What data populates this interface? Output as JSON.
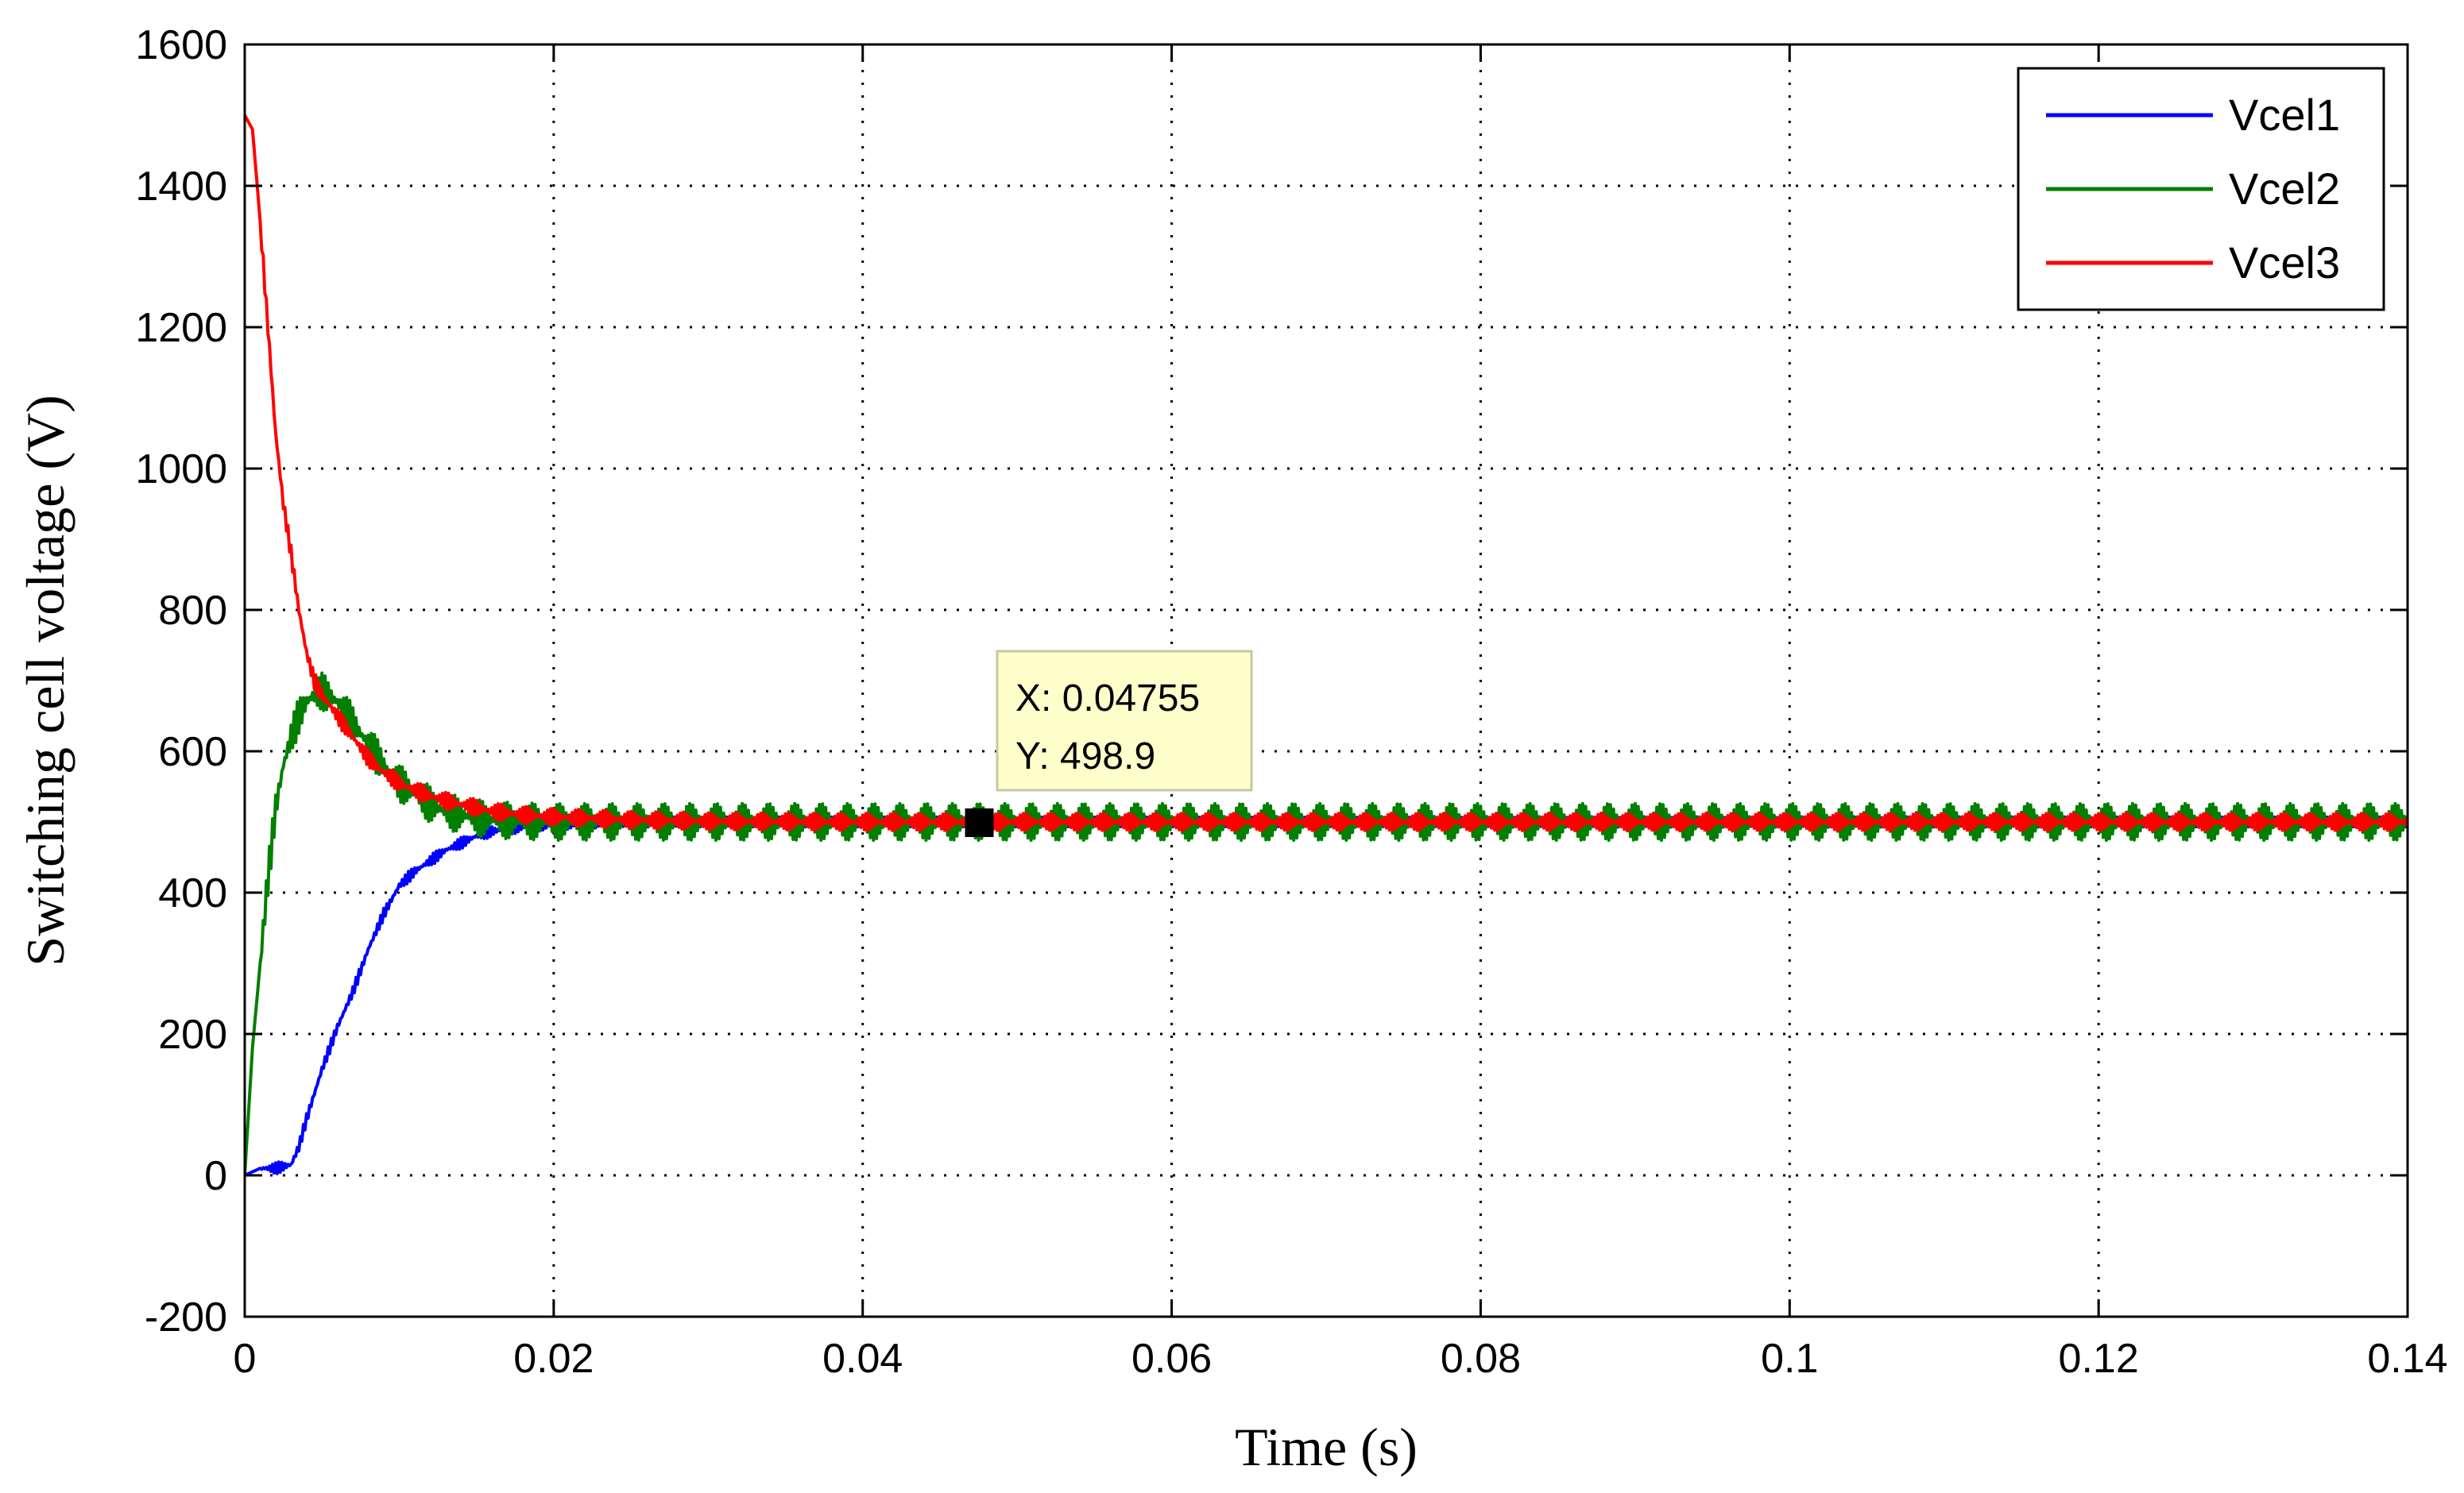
{
  "chart_data": {
    "type": "line",
    "xlabel": "Time (s)",
    "ylabel": "Switching cell voltage (V)",
    "xlim": [
      0,
      0.14
    ],
    "ylim": [
      -200,
      1600
    ],
    "x_ticks": [
      0,
      0.02,
      0.04,
      0.06,
      0.08,
      0.1,
      0.12,
      0.14
    ],
    "x_tick_labels": [
      "0",
      "0.02",
      "0.04",
      "0.06",
      "0.08",
      "0.1",
      "0.12",
      "0.14"
    ],
    "y_ticks": [
      -200,
      0,
      200,
      400,
      600,
      800,
      1000,
      1200,
      1400,
      1600
    ],
    "y_tick_labels": [
      "-200",
      "0",
      "200",
      "400",
      "600",
      "800",
      "1000",
      "1200",
      "1400",
      "1600"
    ],
    "grid": true,
    "legend_position": "top-right",
    "series": [
      {
        "name": "Vcel1",
        "color": "#0000ff",
        "ripple": 8,
        "x": [
          0,
          0.0005,
          0.001,
          0.002,
          0.003,
          0.0035,
          0.004,
          0.005,
          0.006,
          0.007,
          0.008,
          0.009,
          0.01,
          0.011,
          0.012,
          0.013,
          0.014,
          0.015,
          0.016,
          0.018,
          0.02,
          0.025,
          0.03,
          0.04,
          0.05,
          0.06,
          0.07,
          0.08,
          0.09,
          0.1,
          0.11,
          0.12,
          0.13,
          0.14
        ],
        "y": [
          0,
          5,
          10,
          10,
          15,
          40,
          80,
          150,
          210,
          260,
          320,
          370,
          410,
          430,
          445,
          460,
          470,
          480,
          487,
          493,
          497,
          500,
          500,
          500,
          500,
          500,
          500,
          500,
          500,
          500,
          500,
          500,
          500,
          500
        ]
      },
      {
        "name": "Vcel2",
        "color": "#007f00",
        "ripple": 26,
        "x": [
          0,
          0.0005,
          0.001,
          0.0015,
          0.002,
          0.0025,
          0.003,
          0.0035,
          0.004,
          0.0045,
          0.005,
          0.006,
          0.007,
          0.008,
          0.009,
          0.01,
          0.011,
          0.012,
          0.013,
          0.014,
          0.015,
          0.016,
          0.018,
          0.02,
          0.025,
          0.03,
          0.04,
          0.05,
          0.06,
          0.07,
          0.08,
          0.09,
          0.1,
          0.11,
          0.12,
          0.13,
          0.14
        ],
        "y": [
          0,
          180,
          300,
          420,
          520,
          580,
          620,
          650,
          670,
          680,
          685,
          670,
          640,
          610,
          580,
          555,
          540,
          525,
          515,
          510,
          506,
          503,
          501,
          500,
          500,
          500,
          500,
          500,
          500,
          500,
          500,
          500,
          500,
          500,
          500,
          500,
          500
        ]
      },
      {
        "name": "Vcel3",
        "color": "#ff0000",
        "ripple": 12,
        "x": [
          0,
          0.0005,
          0.001,
          0.0015,
          0.002,
          0.0025,
          0.003,
          0.0035,
          0.004,
          0.0045,
          0.005,
          0.006,
          0.007,
          0.008,
          0.009,
          0.01,
          0.011,
          0.012,
          0.013,
          0.014,
          0.015,
          0.016,
          0.018,
          0.02,
          0.025,
          0.03,
          0.04,
          0.05,
          0.06,
          0.07,
          0.08,
          0.09,
          0.1,
          0.11,
          0.12,
          0.13,
          0.14
        ],
        "y": [
          1500,
          1480,
          1350,
          1200,
          1050,
          950,
          880,
          800,
          740,
          700,
          680,
          650,
          620,
          590,
          570,
          555,
          545,
          537,
          530,
          525,
          520,
          515,
          510,
          507,
          503,
          501,
          500,
          500,
          500,
          500,
          500,
          500,
          500,
          500,
          500,
          500,
          500
        ]
      }
    ],
    "datatip": {
      "x_value": 0.04755,
      "y_value": 498.9,
      "x_text": "X: 0.04755",
      "y_text": "Y: 498.9"
    }
  }
}
